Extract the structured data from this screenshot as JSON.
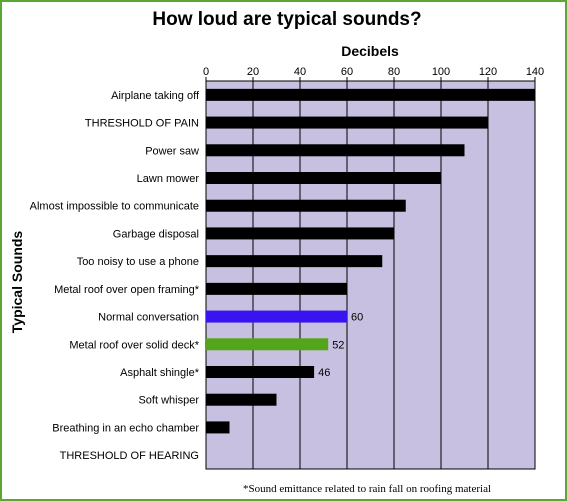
{
  "chart_data": {
    "type": "bar",
    "orientation": "horizontal",
    "title": "How loud are typical sounds?",
    "xlabel": "Decibels",
    "ylabel": "Typical Sounds",
    "xlim": [
      0,
      140
    ],
    "ticks": [
      0,
      20,
      40,
      60,
      80,
      100,
      120,
      140
    ],
    "grid": true,
    "plot_background": "#c8c0e0",
    "categories": [
      "Airplane taking off",
      "THRESHOLD OF PAIN",
      "Power saw",
      "Lawn mower",
      "Almost impossible to communicate",
      "Garbage disposal",
      "Too noisy to use a phone",
      "Metal roof over open framing*",
      "Normal conversation",
      "Metal roof over solid deck*",
      "Asphalt shingle*",
      "Soft whisper",
      "Breathing in an echo chamber",
      "THRESHOLD OF HEARING"
    ],
    "values": [
      140,
      120,
      110,
      100,
      85,
      80,
      75,
      60,
      60,
      52,
      46,
      30,
      10,
      0
    ],
    "colors": [
      "#000000",
      "#000000",
      "#000000",
      "#000000",
      "#000000",
      "#000000",
      "#000000",
      "#000000",
      "#3a14f0",
      "#55a51c",
      "#000000",
      "#000000",
      "#000000",
      "#000000"
    ],
    "data_labels": [
      "",
      "",
      "",
      "",
      "",
      "",
      "",
      "",
      "60",
      "52",
      "46",
      "",
      "",
      ""
    ],
    "footnote": "*Sound emittance related to rain fall on roofing material"
  }
}
